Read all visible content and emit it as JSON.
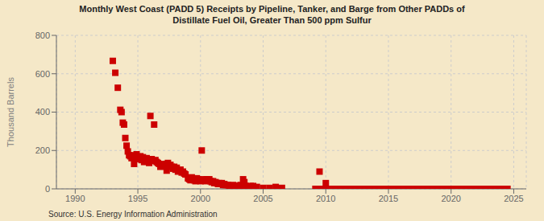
{
  "chart_data": {
    "type": "scatter",
    "title": "Monthly West Coast (PADD 5) Receipts by Pipeline, Tanker, and Barge from Other PADDs of",
    "subtitle": "Distillate Fuel Oil, Greater Than 500 ppm Sulfur",
    "ylabel": "Thousand Barrels",
    "annotations": [
      "Source: U.S. Energy Information Administration"
    ],
    "color": "#cc0000",
    "marker": "square",
    "grid": true,
    "xlim": [
      1988.5,
      2026
    ],
    "ylim": [
      0,
      800
    ],
    "xticks": [
      1990,
      1995,
      2000,
      2005,
      2010,
      2015,
      2020,
      2025
    ],
    "yticks": [
      0,
      200,
      400,
      600,
      800
    ],
    "x": [
      1993.0,
      1993.2,
      1993.4,
      1993.6,
      1993.7,
      1993.8,
      1993.9,
      1994.0,
      1994.1,
      1994.2,
      1994.3,
      1994.4,
      1994.5,
      1994.6,
      1994.7,
      1994.8,
      1994.9,
      1995.0,
      1995.1,
      1995.2,
      1995.3,
      1995.4,
      1995.5,
      1995.6,
      1995.7,
      1995.8,
      1995.9,
      1996.0,
      1996.1,
      1996.2,
      1996.3,
      1996.4,
      1996.5,
      1996.6,
      1996.7,
      1996.8,
      1996.9,
      1997.0,
      1997.1,
      1997.2,
      1997.3,
      1997.4,
      1997.5,
      1997.6,
      1997.7,
      1997.8,
      1997.9,
      1998.0,
      1998.1,
      1998.2,
      1998.3,
      1998.4,
      1998.5,
      1998.6,
      1998.7,
      1998.8,
      1999.0,
      1999.1,
      1999.2,
      1999.3,
      1999.4,
      1999.5,
      1999.6,
      1999.7,
      1999.8,
      1999.9,
      2000.0,
      2000.1,
      2000.2,
      2000.3,
      2000.4,
      2000.5,
      2000.6,
      2000.7,
      2000.8,
      2000.9,
      2001.0,
      2001.1,
      2001.2,
      2001.3,
      2001.4,
      2001.5,
      2001.6,
      2001.7,
      2001.8,
      2001.9,
      2002.0,
      2002.1,
      2002.2,
      2002.3,
      2002.4,
      2002.5,
      2002.6,
      2002.7,
      2002.8,
      2002.9,
      2003.0,
      2003.1,
      2003.2,
      2003.3,
      2003.4,
      2003.5,
      2003.6,
      2003.7,
      2004.0,
      2004.1,
      2004.2,
      2004.5,
      2005.0,
      2005.5,
      2006.0,
      2006.5,
      2009.5,
      2010.0,
      2009.17,
      2009.25,
      2009.33,
      2009.42,
      2009.5,
      2009.58,
      2009.67,
      2009.75,
      2009.83,
      2009.92,
      2010.0,
      2010.08,
      2010.17,
      2010.25,
      2010.33,
      2010.42,
      2010.5,
      2010.58,
      2010.67,
      2010.75,
      2010.83,
      2010.92,
      2011.0,
      2011.08,
      2011.17,
      2011.25,
      2011.33,
      2011.42,
      2011.5,
      2011.58,
      2011.67,
      2011.75,
      2011.83,
      2011.92,
      2012.0,
      2012.08,
      2012.17,
      2012.25,
      2012.33,
      2012.42,
      2012.5,
      2012.58,
      2012.67,
      2012.75,
      2012.83,
      2012.92,
      2013.0,
      2013.08,
      2013.17,
      2013.25,
      2013.33,
      2013.42,
      2013.5,
      2013.58,
      2013.67,
      2013.75,
      2013.83,
      2013.92,
      2014.0,
      2014.08,
      2014.17,
      2014.25,
      2014.33,
      2014.42,
      2014.5,
      2014.58,
      2014.67,
      2014.75,
      2014.83,
      2014.92,
      2015.0,
      2015.08,
      2015.17,
      2015.25,
      2015.33,
      2015.42,
      2015.5,
      2015.58,
      2015.67,
      2015.75,
      2015.83,
      2015.92,
      2016.0,
      2016.08,
      2016.17,
      2016.25,
      2016.33,
      2016.42,
      2016.5,
      2016.58,
      2016.67,
      2016.75,
      2016.83,
      2016.92,
      2017.0,
      2017.08,
      2017.17,
      2017.25,
      2017.33,
      2017.42,
      2017.5,
      2017.58,
      2017.67,
      2017.75,
      2017.83,
      2017.92,
      2018.0,
      2018.08,
      2018.17,
      2018.25,
      2018.33,
      2018.42,
      2018.5,
      2018.58,
      2018.67,
      2018.75,
      2018.83,
      2018.92,
      2019.0,
      2019.08,
      2019.17,
      2019.25,
      2019.33,
      2019.42,
      2019.5,
      2019.58,
      2019.67,
      2019.75,
      2019.83,
      2019.92,
      2020.0,
      2020.08,
      2020.17,
      2020.25,
      2020.33,
      2020.42,
      2020.5,
      2020.58,
      2020.67,
      2020.75,
      2020.83,
      2020.92,
      2021.0,
      2021.08,
      2021.17,
      2021.25,
      2021.33,
      2021.42,
      2021.5,
      2021.58,
      2021.67,
      2021.75,
      2021.83,
      2021.92,
      2022.0,
      2022.08,
      2022.17,
      2022.25,
      2022.33,
      2022.42,
      2022.5,
      2022.58,
      2022.67,
      2022.75,
      2022.83,
      2022.92,
      2023.0,
      2023.08,
      2023.17,
      2023.25,
      2023.33,
      2023.42,
      2023.5,
      2023.58,
      2023.67,
      2023.75,
      2023.83,
      2023.92,
      2024.0,
      2024.08,
      2024.17,
      2024.25,
      2024.33,
      2024.42,
      2024.5
    ],
    "values": [
      667,
      605,
      527,
      412,
      400,
      345,
      335,
      265,
      225,
      195,
      175,
      170,
      160,
      175,
      130,
      155,
      180,
      155,
      160,
      170,
      150,
      165,
      140,
      145,
      160,
      145,
      135,
      380,
      155,
      145,
      335,
      150,
      140,
      135,
      130,
      115,
      125,
      120,
      125,
      130,
      95,
      135,
      120,
      125,
      115,
      105,
      115,
      100,
      110,
      90,
      95,
      100,
      85,
      90,
      80,
      75,
      55,
      50,
      45,
      60,
      50,
      45,
      40,
      55,
      50,
      45,
      40,
      200,
      50,
      45,
      40,
      50,
      45,
      50,
      40,
      35,
      40,
      30,
      35,
      30,
      25,
      30,
      25,
      30,
      20,
      25,
      20,
      20,
      20,
      15,
      10,
      15,
      20,
      10,
      15,
      15,
      10,
      15,
      20,
      10,
      50,
      35,
      15,
      10,
      15,
      10,
      15,
      10,
      5,
      5,
      10,
      5,
      90,
      30,
      0,
      0,
      0,
      0,
      0,
      0,
      0,
      0,
      0,
      0,
      0,
      0,
      0,
      0,
      0,
      0,
      0,
      0,
      0,
      0,
      0,
      0,
      0,
      0,
      0,
      0,
      0,
      0,
      0,
      0,
      0,
      0,
      0,
      0,
      0,
      0,
      0,
      0,
      0,
      0,
      0,
      0,
      0,
      0,
      0,
      0,
      0,
      0,
      0,
      0,
      0,
      0,
      0,
      0,
      0,
      0,
      0,
      0,
      0,
      0,
      0,
      0,
      0,
      0,
      0,
      0,
      0,
      0,
      0,
      0,
      0,
      0,
      0,
      0,
      0,
      0,
      0,
      0,
      0,
      0,
      0,
      0,
      0,
      0,
      0,
      0,
      0,
      0,
      0,
      0,
      0,
      0,
      0,
      0,
      0,
      0,
      0,
      0,
      0,
      0,
      0,
      0,
      0,
      0,
      0,
      0,
      0,
      0,
      0,
      0,
      0,
      0,
      0,
      0,
      0,
      0,
      0,
      0,
      0,
      0,
      0,
      0,
      0,
      0,
      0,
      0,
      0,
      0,
      0,
      0,
      0,
      0,
      0,
      0,
      0,
      0,
      0,
      0,
      0,
      0,
      0,
      0,
      0,
      0,
      0,
      0,
      0,
      0,
      0,
      0,
      0,
      0,
      0,
      0,
      0,
      0,
      0,
      0,
      0,
      0,
      0,
      0,
      0,
      0,
      0,
      0,
      0,
      0,
      0,
      0,
      0,
      0,
      0,
      0,
      0,
      0,
      0,
      0,
      0,
      0,
      0,
      0,
      0,
      0,
      0
    ]
  }
}
